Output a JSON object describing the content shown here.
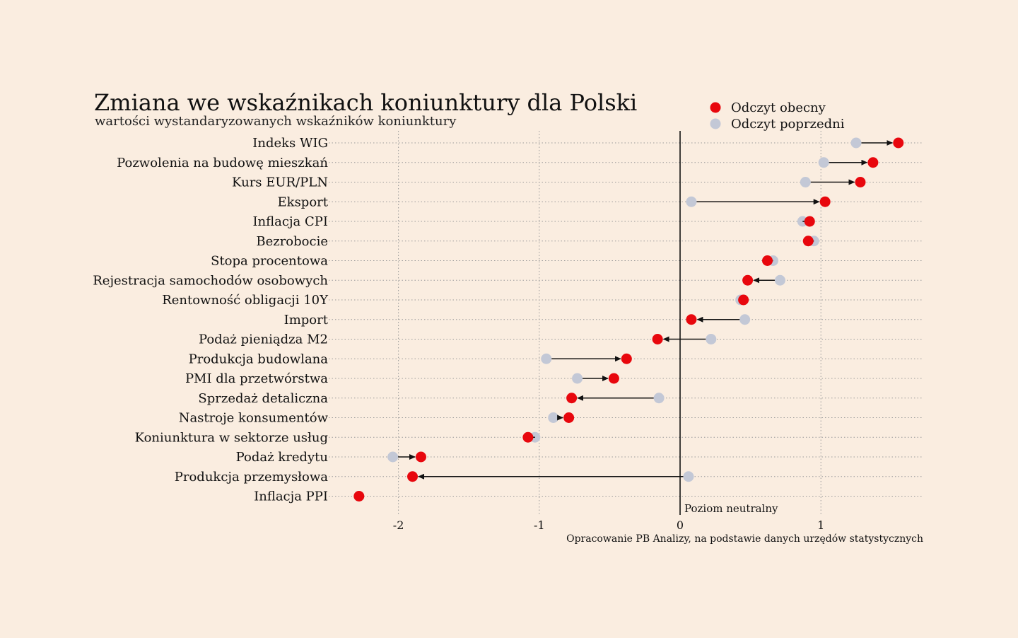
{
  "chart_data": {
    "type": "dot-arrow",
    "title": "Zmiana we wskaźnikach koniunktury dla Polski",
    "subtitle": "wartości wystandaryzowanych wskaźników koniunktury",
    "legend": {
      "placement": "top-right",
      "current": {
        "label": "Odczyt obecny",
        "color": "#e8070d"
      },
      "previous": {
        "label": "Odczyt poprzedni",
        "color": "#c3c8d6"
      }
    },
    "neutral_label": "Poziom neutralny",
    "source": "Opracowanie PB Analizy, na podstawie danych urzędów statystycznych",
    "xlim": [
      -2.5,
      1.72
    ],
    "xticks": [
      "-2",
      "-1",
      "0",
      "1"
    ],
    "xtick_values": [
      -2,
      -1,
      0,
      1
    ],
    "grid": "dotted",
    "indicators": [
      {
        "name": "Indeks WIG",
        "previous": 1.25,
        "current": 1.55
      },
      {
        "name": "Pozwolenia na budowę mieszkań",
        "previous": 1.02,
        "current": 1.37
      },
      {
        "name": "Kurs EUR/PLN",
        "previous": 0.89,
        "current": 1.28
      },
      {
        "name": "Eksport",
        "previous": 0.08,
        "current": 1.03
      },
      {
        "name": "Inflacja CPI",
        "previous": 0.87,
        "current": 0.92
      },
      {
        "name": "Bezrobocie",
        "previous": 0.95,
        "current": 0.91
      },
      {
        "name": "Stopa procentowa",
        "previous": 0.66,
        "current": 0.62
      },
      {
        "name": "Rejestracja samochodów osobowych",
        "previous": 0.71,
        "current": 0.48
      },
      {
        "name": "Rentowność obligacji 10Y",
        "previous": 0.43,
        "current": 0.45
      },
      {
        "name": "Import",
        "previous": 0.46,
        "current": 0.08
      },
      {
        "name": "Podaż pieniądza M2",
        "previous": 0.22,
        "current": -0.16
      },
      {
        "name": "Produkcja budowlana",
        "previous": -0.95,
        "current": -0.38
      },
      {
        "name": "PMI dla przetwórstwa",
        "previous": -0.73,
        "current": -0.47
      },
      {
        "name": "Sprzedaż detaliczna",
        "previous": -0.15,
        "current": -0.77
      },
      {
        "name": "Nastroje konsumentów",
        "previous": -0.9,
        "current": -0.79
      },
      {
        "name": "Koniunktura w sektorze usług",
        "previous": -1.03,
        "current": -1.08
      },
      {
        "name": "Podaż kredytu",
        "previous": -2.04,
        "current": -1.84
      },
      {
        "name": "Produkcja przemysłowa",
        "previous": 0.06,
        "current": -1.9
      },
      {
        "name": "Inflacja PPI",
        "previous": -2.28,
        "current": -2.28
      }
    ]
  }
}
